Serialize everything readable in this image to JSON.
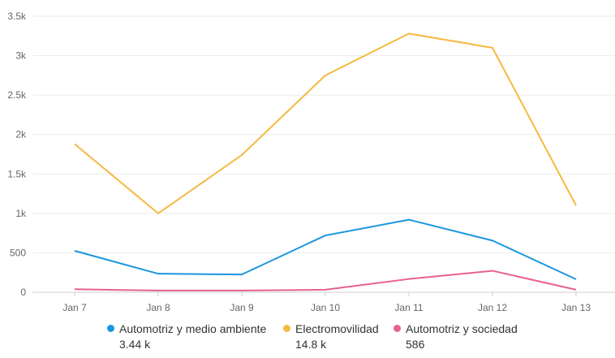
{
  "chart_data": {
    "type": "line",
    "title": "",
    "xlabel": "",
    "ylabel": "",
    "x": [
      "Jan 7",
      "Jan 8",
      "Jan 9",
      "Jan 10",
      "Jan 11",
      "Jan 12",
      "Jan 13"
    ],
    "ylim": [
      0,
      3500
    ],
    "yticks": [
      0,
      500,
      1000,
      1500,
      2000,
      2500,
      3000,
      3500
    ],
    "ytick_labels": [
      "0",
      "500",
      "1k",
      "1.5k",
      "2k",
      "2.5k",
      "3k",
      "3.5k"
    ],
    "grid": true,
    "legend_position": "bottom",
    "series": [
      {
        "name": "Automotriz y medio ambiente",
        "total": "3.44 k",
        "color": "#1a96e0",
        "values": [
          525,
          235,
          225,
          720,
          920,
          655,
          165
        ]
      },
      {
        "name": "Electromovilidad",
        "total": "14.8 k",
        "color": "#f5b942",
        "values": [
          1880,
          1000,
          1740,
          2750,
          3280,
          3100,
          1100
        ]
      },
      {
        "name": "Automotriz y sociedad",
        "total": "586",
        "color": "#e8618c",
        "values": [
          38,
          22,
          22,
          32,
          168,
          272,
          32
        ]
      }
    ]
  }
}
